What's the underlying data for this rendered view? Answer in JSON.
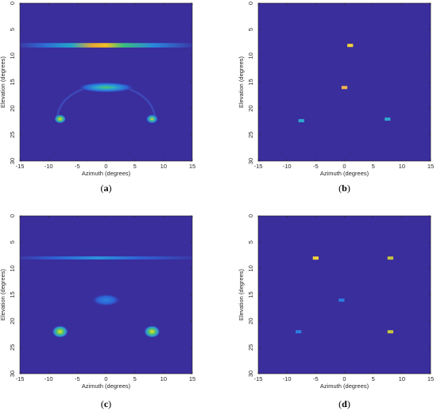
{
  "colors": {
    "background": "#3a2d9c"
  },
  "panels": [
    {
      "label_open": "(",
      "label_letter": "a",
      "label_close": ")"
    },
    {
      "label_open": "(",
      "label_letter": "b",
      "label_close": ")"
    },
    {
      "label_open": "(",
      "label_letter": "c",
      "label_close": ")"
    },
    {
      "label_open": "(",
      "label_letter": "d",
      "label_close": ")"
    }
  ],
  "chart_data": [
    {
      "type": "heatmap",
      "xlabel": "Azimuth (degrees)",
      "ylabel": "Elevation (degrees)",
      "xlim": [
        -15,
        15
      ],
      "ylim": [
        30,
        0
      ],
      "xticks": [
        -15,
        -10,
        -5,
        0,
        5,
        10,
        15
      ],
      "yticks": [
        0,
        5,
        10,
        15,
        20,
        25,
        30
      ],
      "features": [
        {
          "kind": "band",
          "x": [
            -15,
            15
          ],
          "y": 8,
          "peak": [
            0,
            8
          ],
          "intensity": 1.0
        },
        {
          "kind": "blob",
          "x": 0,
          "y": 16,
          "intensity": 0.6
        },
        {
          "kind": "point",
          "x": -8,
          "y": 22,
          "intensity": 0.8
        },
        {
          "kind": "point",
          "x": 8,
          "y": 22,
          "intensity": 0.7
        }
      ]
    },
    {
      "type": "heatmap",
      "xlabel": "Azimuth (degrees)",
      "ylabel": "Elevation (degrees)",
      "xlim": [
        -15,
        15
      ],
      "ylim": [
        30,
        0
      ],
      "xticks": [
        -15,
        -10,
        -5,
        0,
        5,
        10,
        15
      ],
      "yticks": [
        0,
        5,
        10,
        15,
        20,
        25,
        30
      ],
      "features": [
        {
          "kind": "point",
          "x": 1,
          "y": 8,
          "intensity": 1.0
        },
        {
          "kind": "point",
          "x": 0,
          "y": 16,
          "intensity": 0.9
        },
        {
          "kind": "point",
          "x": -7.5,
          "y": 22.3,
          "intensity": 0.4
        },
        {
          "kind": "point",
          "x": 7.5,
          "y": 22,
          "intensity": 0.4
        }
      ]
    },
    {
      "type": "heatmap",
      "xlabel": "Azimuth (degrees)",
      "ylabel": "Elevation (degrees)",
      "xlim": [
        -15,
        15
      ],
      "ylim": [
        30,
        0
      ],
      "xticks": [
        -15,
        -10,
        -5,
        0,
        5,
        10,
        15
      ],
      "yticks": [
        0,
        5,
        10,
        15,
        20,
        25,
        30
      ],
      "features": [
        {
          "kind": "band",
          "x": [
            -15,
            15
          ],
          "y": 8,
          "peak": [
            -1,
            8
          ],
          "intensity": 0.45
        },
        {
          "kind": "blob",
          "x": 0,
          "y": 16,
          "intensity": 0.35
        },
        {
          "kind": "point",
          "x": -8,
          "y": 22,
          "intensity": 0.85
        },
        {
          "kind": "point",
          "x": 8,
          "y": 22,
          "intensity": 0.85
        }
      ]
    },
    {
      "type": "heatmap",
      "xlabel": "Azimuth (degrees)",
      "ylabel": "Elevation (degrees)",
      "xlim": [
        -15,
        15
      ],
      "ylim": [
        30,
        0
      ],
      "xticks": [
        -15,
        -10,
        -5,
        0,
        5,
        10,
        15
      ],
      "yticks": [
        0,
        5,
        10,
        15,
        20,
        25,
        30
      ],
      "features": [
        {
          "kind": "point",
          "x": -5,
          "y": 8,
          "intensity": 1.0
        },
        {
          "kind": "point",
          "x": 8,
          "y": 8,
          "intensity": 0.7
        },
        {
          "kind": "point",
          "x": -0.5,
          "y": 16,
          "intensity": 0.3
        },
        {
          "kind": "point",
          "x": -8,
          "y": 22,
          "intensity": 0.3
        },
        {
          "kind": "point",
          "x": 8,
          "y": 22,
          "intensity": 0.7
        }
      ]
    }
  ]
}
